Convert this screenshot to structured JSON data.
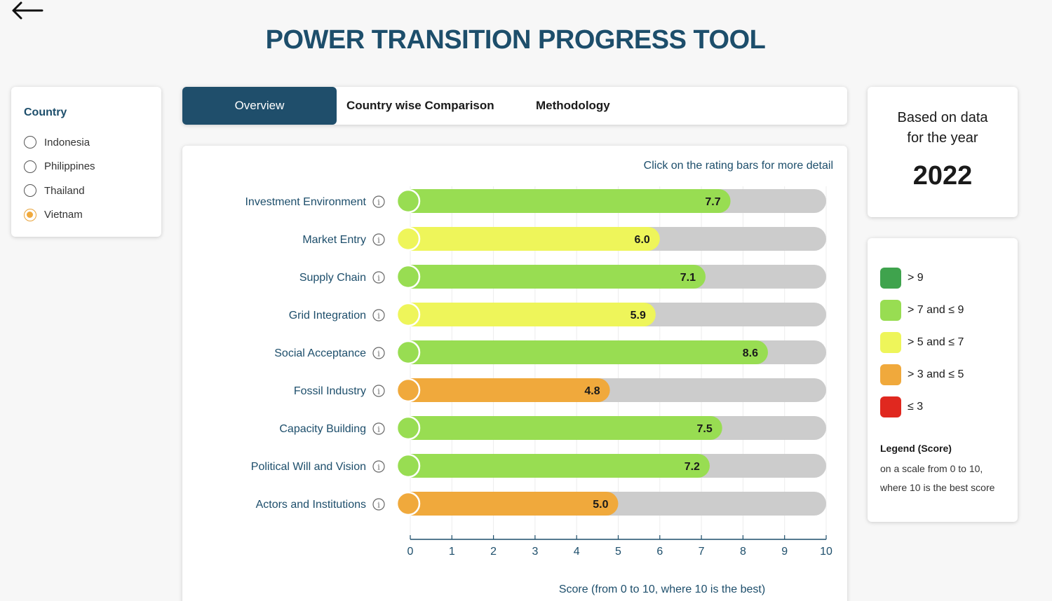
{
  "app": {
    "title": "POWER TRANSITION PROGRESS TOOL"
  },
  "country_panel": {
    "heading": "Country",
    "options": [
      {
        "label": "Indonesia",
        "selected": false
      },
      {
        "label": "Philippines",
        "selected": false
      },
      {
        "label": "Thailand",
        "selected": false
      },
      {
        "label": "Vietnam",
        "selected": true
      }
    ]
  },
  "tabs": [
    {
      "label": "Overview",
      "active": true
    },
    {
      "label": "Country wise Comparison",
      "active": false
    },
    {
      "label": "Methodology",
      "active": false
    }
  ],
  "year_panel": {
    "label_line1": "Based on data",
    "label_line2": "for the year",
    "year": "2022"
  },
  "legend": {
    "items": [
      {
        "label": "> 9",
        "color": "#3fa34d"
      },
      {
        "label": "> 7 and ≤ 9",
        "color": "#98dd52"
      },
      {
        "label": "> 5 and ≤ 7",
        "color": "#eef55a"
      },
      {
        "label": "> 3 and ≤ 5",
        "color": "#f0a93c"
      },
      {
        "label": "≤ 3",
        "color": "#e0281f"
      }
    ],
    "title": "Legend (Score)",
    "description": "on a scale from 0 to 10, where 10 is the best score"
  },
  "chart_hint": "Click on the rating bars for more detail",
  "chart_data": {
    "type": "bar",
    "orientation": "horizontal",
    "categories": [
      "Investment Environment",
      "Market Entry",
      "Supply Chain",
      "Grid Integration",
      "Social Acceptance",
      "Fossil Industry",
      "Capacity Building",
      "Political Will and Vision",
      "Actors and Institutions"
    ],
    "values": [
      7.7,
      6.0,
      7.1,
      5.9,
      8.6,
      4.8,
      7.5,
      7.2,
      5.0
    ],
    "value_labels": [
      "7.7",
      "6.0",
      "7.1",
      "5.9",
      "8.6",
      "4.8",
      "7.5",
      "7.2",
      "5.0"
    ],
    "colors": [
      "#98dd52",
      "#eef55a",
      "#98dd52",
      "#eef55a",
      "#98dd52",
      "#f0a93c",
      "#98dd52",
      "#98dd52",
      "#f0a93c"
    ],
    "xlim": [
      0,
      10
    ],
    "xticks": [
      "0",
      "1",
      "2",
      "3",
      "4",
      "5",
      "6",
      "7",
      "8",
      "9",
      "10"
    ],
    "xlabel": "Score (from 0 to 10, where 10 is the best)",
    "track_color": "#cccccc",
    "grid": true
  }
}
